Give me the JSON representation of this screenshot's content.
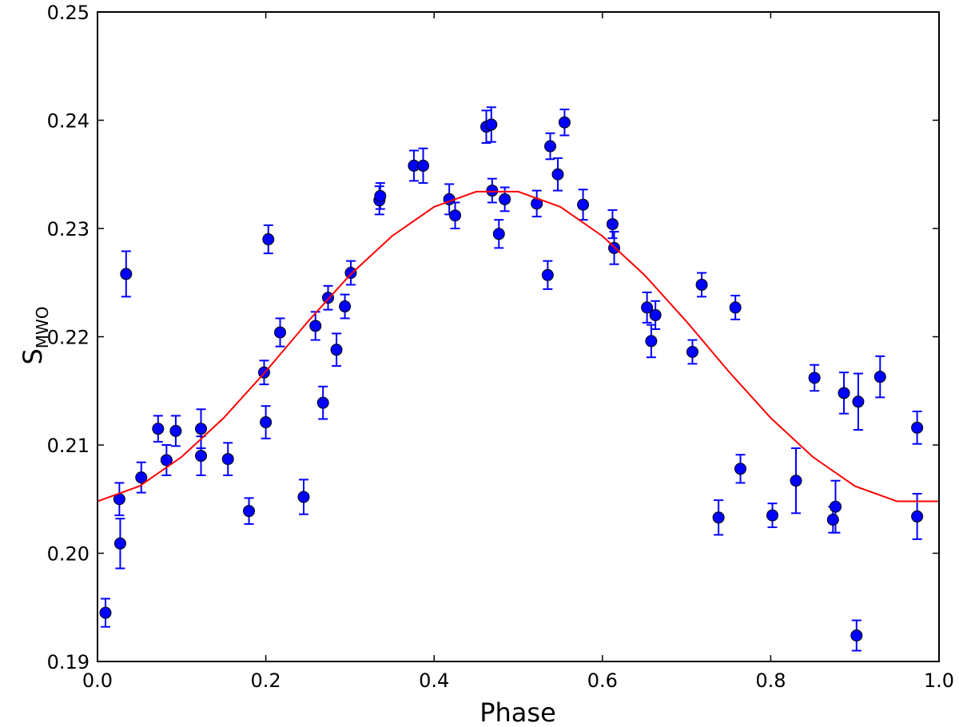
{
  "chart_data": {
    "type": "scatter",
    "xlabel": "Phase",
    "ylabel": "S",
    "ylabel_subscript": "MWO",
    "xlim": [
      0,
      1
    ],
    "ylim": [
      0.19,
      0.25
    ],
    "xticks": [
      {
        "value": 0,
        "label": "0.0"
      },
      0.2,
      0.4,
      0.6,
      0.8,
      {
        "value": 1,
        "label": "1.0"
      }
    ],
    "yticks": [
      0.19,
      {
        "value": 0.2,
        "label": "0.20"
      },
      0.21,
      0.22,
      0.23,
      0.24,
      0.25
    ],
    "series": [
      {
        "type": "scatter",
        "color": "#0000ff",
        "x": [
          0.0095,
          0.026,
          0.027,
          0.034,
          0.052,
          0.072,
          0.082,
          0.093,
          0.123,
          0.123,
          0.155,
          0.18,
          0.198,
          0.2,
          0.203,
          0.217,
          0.245,
          0.259,
          0.268,
          0.274,
          0.284,
          0.294,
          0.301,
          0.335,
          0.336,
          0.376,
          0.387,
          0.418,
          0.425,
          0.462,
          0.468,
          0.469,
          0.477,
          0.484,
          0.522,
          0.535,
          0.538,
          0.547,
          0.555,
          0.577,
          0.612,
          0.614,
          0.653,
          0.658,
          0.663,
          0.707,
          0.718,
          0.738,
          0.758,
          0.764,
          0.802,
          0.83,
          0.852,
          0.874,
          0.877,
          0.887,
          0.902,
          0.904,
          0.93,
          0.974,
          0.974
        ],
        "values": [
          0.1945,
          0.205,
          0.2009,
          0.2258,
          0.207,
          0.2115,
          0.2086,
          0.2113,
          0.2115,
          0.209,
          0.2087,
          0.2039,
          0.2167,
          0.2121,
          0.229,
          0.2204,
          0.2052,
          0.221,
          0.2139,
          0.2236,
          0.2188,
          0.2228,
          0.2259,
          0.2326,
          0.233,
          0.2358,
          0.2358,
          0.2327,
          0.2312,
          0.2394,
          0.2396,
          0.2335,
          0.2295,
          0.2327,
          0.2323,
          0.2257,
          0.2376,
          0.235,
          0.2398,
          0.2322,
          0.2304,
          0.2282,
          0.2227,
          0.2196,
          0.222,
          0.2186,
          0.2248,
          0.2033,
          0.2227,
          0.2078,
          0.2035,
          0.2067,
          0.2162,
          0.2031,
          0.2043,
          0.2148,
          0.1924,
          0.214,
          0.2163,
          0.2116,
          0.2034
        ],
        "errors": [
          0.0013,
          0.0015,
          0.0023,
          0.0021,
          0.0014,
          0.0012,
          0.0014,
          0.0014,
          0.0018,
          0.0018,
          0.0015,
          0.0012,
          0.0011,
          0.0015,
          0.0013,
          0.0013,
          0.0016,
          0.0013,
          0.0015,
          0.0011,
          0.0015,
          0.0011,
          0.0011,
          0.0013,
          0.0012,
          0.0014,
          0.0016,
          0.0014,
          0.0012,
          0.0015,
          0.0016,
          0.0011,
          0.0013,
          0.0011,
          0.0012,
          0.0013,
          0.0012,
          0.0015,
          0.0012,
          0.0014,
          0.0013,
          0.0015,
          0.0014,
          0.0015,
          0.0013,
          0.0011,
          0.0011,
          0.0016,
          0.0011,
          0.0013,
          0.0011,
          0.003,
          0.0012,
          0.0012,
          0.0024,
          0.0019,
          0.0014,
          0.0026,
          0.0019,
          0.0015,
          0.0021
        ]
      },
      {
        "type": "line",
        "color": "#ff0000",
        "x": [
          0,
          0.05,
          0.1,
          0.15,
          0.2,
          0.25,
          0.3,
          0.35,
          0.4,
          0.45,
          0.5,
          0.55,
          0.6,
          0.65,
          0.7,
          0.75,
          0.8,
          0.85,
          0.9,
          0.95,
          1
        ],
        "values": [
          0.2048,
          0.2062,
          0.2089,
          0.2125,
          0.2168,
          0.2214,
          0.2257,
          0.2293,
          0.232,
          0.2334,
          0.2334,
          0.232,
          0.2293,
          0.2257,
          0.2214,
          0.2168,
          0.2125,
          0.2089,
          0.2062,
          0.2048,
          0.2048
        ]
      }
    ]
  }
}
